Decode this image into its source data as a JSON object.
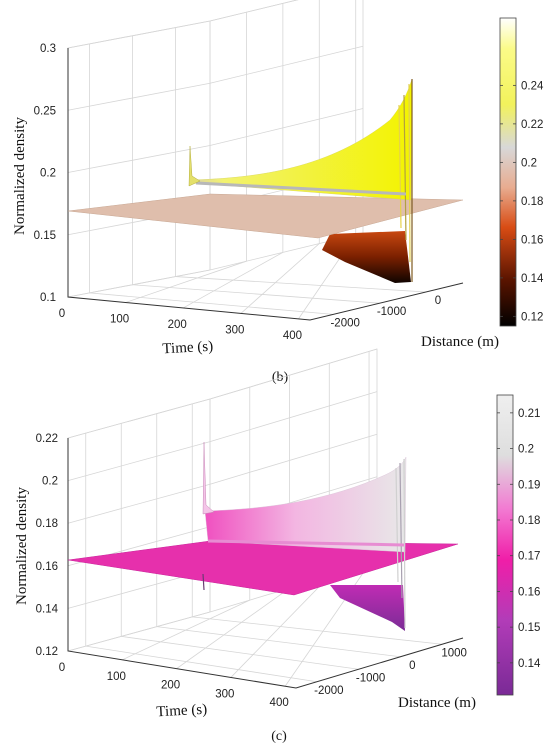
{
  "chart_data": [
    {
      "panel": "(b)",
      "type": "surface",
      "xlabel": "Time (s)",
      "ylabel": "Distance (m)",
      "zlabel": "Normalized density",
      "x_ticks": [
        "0",
        "100",
        "200",
        "300",
        "400"
      ],
      "y_ticks": [
        "-2000",
        "-1000",
        "0"
      ],
      "z_ticks": [
        "0.1",
        "0.15",
        "0.2",
        "0.25",
        "0.3"
      ],
      "xlim": [
        0,
        420
      ],
      "ylim": [
        -2500,
        800
      ],
      "zlim": [
        0.1,
        0.3
      ],
      "baseline_density": 0.1667,
      "upper_front_max": 0.27,
      "lower_front_min": 0.12,
      "spike_value": 0.2,
      "colormap": "hot",
      "colorbar_ticks": [
        "0.12",
        "0.14",
        "0.16",
        "0.18",
        "0.2",
        "0.22",
        "0.24"
      ],
      "colorbar_range": [
        0.115,
        0.275
      ]
    },
    {
      "panel": "(c)",
      "type": "surface",
      "xlabel": "Time (s)",
      "ylabel": "Distance (m)",
      "zlabel": "Normalized density",
      "x_ticks": [
        "0",
        "100",
        "200",
        "300",
        "400"
      ],
      "y_ticks": [
        "-2000",
        "-1000",
        "0",
        "1000"
      ],
      "z_ticks": [
        "0.12",
        "0.14",
        "0.16",
        "0.18",
        "0.2",
        "0.22"
      ],
      "xlim": [
        0,
        420
      ],
      "ylim": [
        -2500,
        1500
      ],
      "zlim": [
        0.12,
        0.22
      ],
      "baseline_density": 0.1667,
      "upper_front_max": 0.212,
      "lower_front_min": 0.131,
      "spike_value": 0.205,
      "colormap": "purple-magenta-gray",
      "colorbar_ticks": [
        "0.14",
        "0.15",
        "0.16",
        "0.17",
        "0.18",
        "0.19",
        "0.2",
        "0.21"
      ],
      "colorbar_range": [
        0.131,
        0.215
      ]
    }
  ],
  "colors": {
    "hot_map": [
      "#000000",
      "#6a1a00",
      "#e0561e",
      "#e6b49a",
      "#d8d8d8",
      "#f3f35a",
      "#ffffb8",
      "#ffffff"
    ],
    "pm_map": [
      "#7a2a96",
      "#b436b8",
      "#f01ea6",
      "#f25ac8",
      "#dcd0dc",
      "#ececec"
    ]
  }
}
